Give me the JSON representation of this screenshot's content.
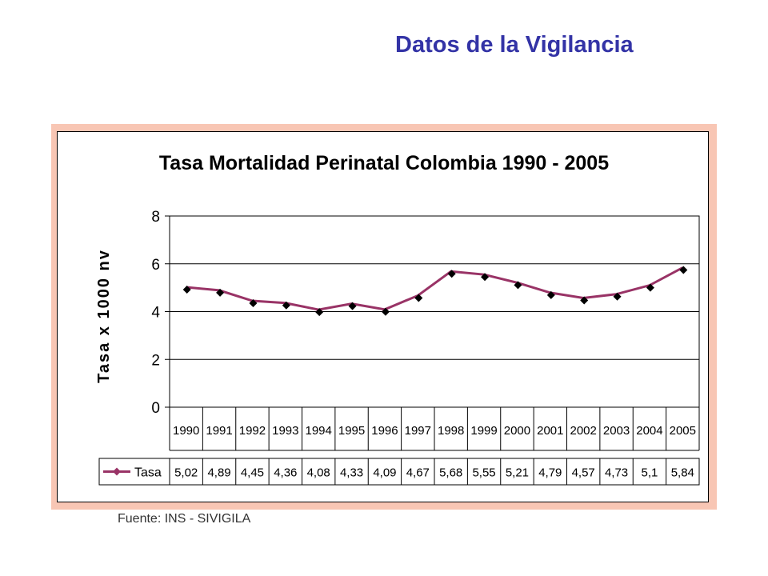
{
  "slide": {
    "title": "Datos de la Vigilancia",
    "source": "Fuente: INS - SIVIGILA"
  },
  "colors": {
    "title": "#3333a6",
    "frame": "#f8c6b4",
    "series_line": "#993366",
    "marker": "#000000"
  },
  "chart_data": {
    "type": "line",
    "title": "Tasa Mortalidad Perinatal Colombia 1990 - 2005",
    "ylabel": "Tasa x 1000 nv",
    "xlabel": "",
    "ylim": [
      0,
      8
    ],
    "yticks": [
      "0",
      "2",
      "4",
      "6",
      "8"
    ],
    "ytick_values": [
      0,
      2,
      4,
      6,
      8
    ],
    "grid": true,
    "legend": "data-table-left",
    "categories": [
      "1990",
      "1991",
      "1992",
      "1993",
      "1994",
      "1995",
      "1996",
      "1997",
      "1998",
      "1999",
      "2000",
      "2001",
      "2002",
      "2003",
      "2004",
      "2005"
    ],
    "series": [
      {
        "name": "Tasa",
        "values": [
          5.02,
          4.89,
          4.45,
          4.36,
          4.08,
          4.33,
          4.09,
          4.67,
          5.68,
          5.55,
          5.21,
          4.79,
          4.57,
          4.73,
          5.1,
          5.84
        ],
        "labels": [
          "5,02",
          "4,89",
          "4,45",
          "4,36",
          "4,08",
          "4,33",
          "4,09",
          "4,67",
          "5,68",
          "5,55",
          "5,21",
          "4,79",
          "4,57",
          "4,73",
          "5,1",
          "5,84"
        ]
      }
    ]
  }
}
